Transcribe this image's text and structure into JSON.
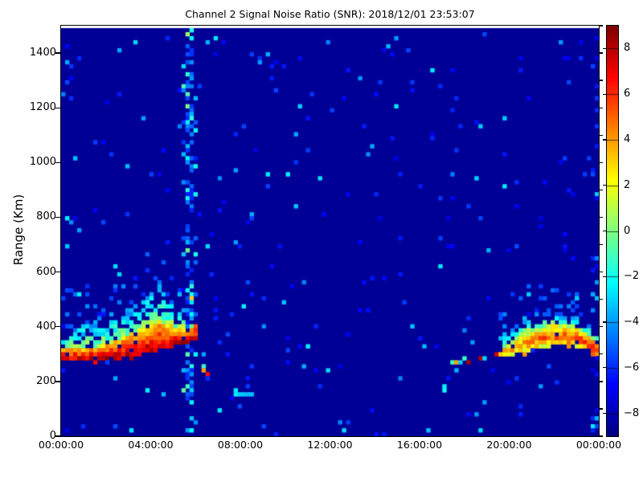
{
  "chart_data": {
    "type": "heatmap",
    "title": "Channel 2 Signal Noise Ratio (SNR): 2018/12/01 23:53:07",
    "ylabel": "Range (Km)",
    "xlabel": "",
    "x_range_hours": [
      0,
      24
    ],
    "y_range_km": [
      0,
      1500
    ],
    "x_tick_hours": [
      0,
      4,
      8,
      12,
      16,
      20,
      24
    ],
    "x_tick_labels": [
      "00:00:00",
      "04:00:00",
      "08:00:00",
      "12:00:00",
      "16:00:00",
      "20:00:00",
      "00:00:00"
    ],
    "y_tick_values": [
      0,
      200,
      400,
      600,
      800,
      1000,
      1200,
      1400
    ],
    "y_tick_labels": [
      "0",
      "200",
      "400",
      "600",
      "800",
      "1000",
      "1200",
      "1400"
    ],
    "y_minor_tick_step_km": 100,
    "grid": false,
    "background_value": -8.6,
    "colorbar": {
      "colormap": "jet",
      "vmin": -9,
      "vmax": 9,
      "tick_values": [
        8,
        6,
        4,
        2,
        0,
        -2,
        -4,
        -6,
        -8
      ],
      "tick_labels": [
        "8",
        "6",
        "4",
        "2",
        "0",
        "−2",
        "−4",
        "−6",
        "−8"
      ],
      "position": "right"
    },
    "colors": {
      "background_deep_blue": "#00008f",
      "noise_blue": "#0040ff",
      "noise_cyan": "#00d4ff",
      "layer_core_red": "#d40000",
      "layer_mid_yellow": "#f0ff14",
      "frame": "#000000"
    },
    "features": {
      "morning_layer": {
        "description": "strong E/F-layer echo arc 00:00-06:06, red core at bottom edge",
        "t": [
          0,
          1,
          2,
          3,
          3.8,
          4.4,
          4.9,
          5.3,
          5.8,
          6.1
        ],
        "bottom_km": [
          272,
          276,
          283,
          293,
          303,
          316,
          325,
          333,
          345,
          350
        ],
        "core_top_km": [
          315,
          320,
          332,
          368,
          400,
          418,
          408,
          395,
          400,
          420
        ],
        "fringe_top_km": [
          420,
          435,
          460,
          500,
          555,
          580,
          520,
          470,
          450,
          432
        ],
        "peak_snr": [
          8.8,
          8.5,
          8.4,
          8.2,
          8.2,
          8.4,
          8.0,
          8.3,
          8.6,
          8.6
        ]
      },
      "morning_descent": {
        "description": "sparse descending echo trail after 06:00",
        "t_start": 6.05,
        "t_end": 6.95,
        "range_start_km": 305,
        "range_end_km": 168,
        "density": 0.5
      },
      "sporadic_dash": {
        "description": "short cyan horizontal echo near 08:20",
        "t_start": 7.75,
        "t_end": 8.6,
        "range_km": 160,
        "value": -3.0
      },
      "interference_stripe": {
        "description": "vertical column of speckle noise near 05:45 spanning all ranges",
        "t_center": 5.74,
        "core_half_width_h": 0.1,
        "halo_half_width_h": 0.4,
        "core_density": 0.5,
        "halo_density": 0.1,
        "range_min_km": 5,
        "range_max_km": 1495
      },
      "evening_trail": {
        "description": "thin dotted rising trail 17:20-19:30",
        "t_start": 17.35,
        "t_end": 19.5,
        "range_start_km": 268,
        "range_end_km": 295,
        "density": 0.65
      },
      "evening_low_dots": [
        {
          "t": 17.05,
          "range_km": 178
        },
        {
          "t": 17.15,
          "range_km": 176
        }
      ],
      "evening_layer": {
        "description": "second echo arc 19:30-24:00 peaking near 400 km",
        "t": [
          19.5,
          20.2,
          21.0,
          22.0,
          22.8,
          23.4,
          23.75,
          24.01
        ],
        "bottom_km": [
          285,
          298,
          315,
          332,
          330,
          315,
          298,
          292
        ],
        "core_top_km": [
          320,
          352,
          388,
          408,
          400,
          378,
          352,
          335
        ],
        "fringe_top_km": [
          360,
          420,
          452,
          462,
          450,
          428,
          392,
          368
        ],
        "peak_snr": [
          4.0,
          4.5,
          5.0,
          5.5,
          5.8,
          6.2,
          7.6,
          6.5
        ]
      }
    },
    "noise": {
      "base_density": 0.02,
      "left_edge_density": 0.05,
      "right_edge_density": 0.15
    }
  }
}
